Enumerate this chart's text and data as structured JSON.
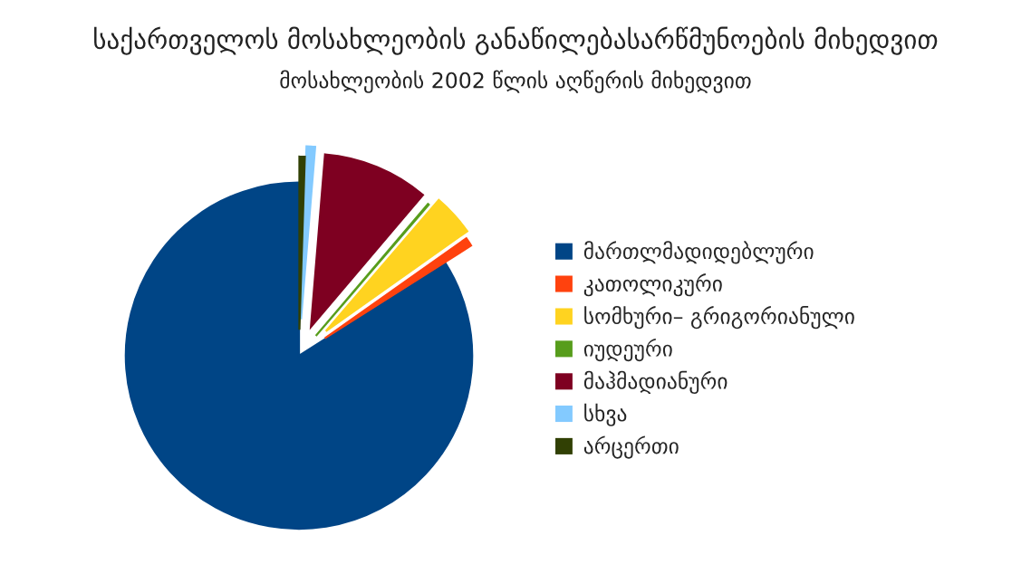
{
  "chart_data": {
    "type": "pie",
    "title": "საქართველოს მოსახლეობის განაწილებასარწმუნოების მიხედვით",
    "subtitle": "მოსახლეობის 2002 წლის აღწერის მიხედვით",
    "categories": [
      "მართლმადიდებლური",
      "კათოლიკური",
      "სომხური– გრიგორიანული",
      "იუდეური",
      "მაჰმადიანური",
      "სხვა",
      "არცერთი"
    ],
    "values": [
      84.0,
      0.8,
      3.9,
      0.1,
      9.9,
      0.8,
      0.5
    ],
    "colors": [
      "#004586",
      "#ff420e",
      "#ffd320",
      "#579d1c",
      "#7e0021",
      "#83caff",
      "#314004"
    ],
    "legend": "right"
  }
}
